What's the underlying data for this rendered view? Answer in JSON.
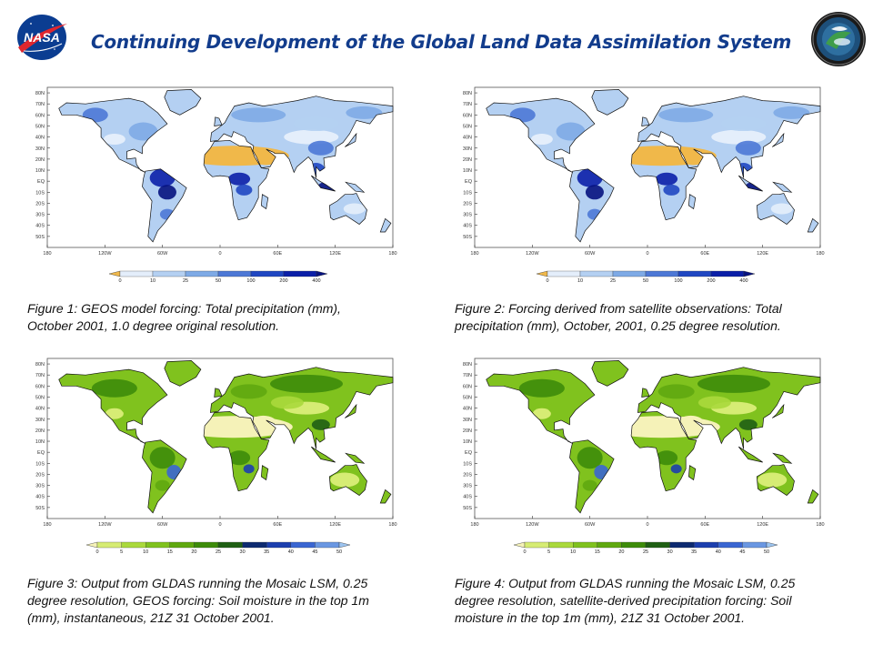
{
  "title": "Continuing Development of the Global Land Data Assimilation System",
  "logos": {
    "left": "NASA"
  },
  "map_axes": {
    "lat_labels": [
      "80N",
      "70N",
      "60N",
      "50N",
      "40N",
      "30N",
      "20N",
      "10N",
      "EQ",
      "10S",
      "20S",
      "30S",
      "40S",
      "50S"
    ],
    "lon_labels": [
      "180",
      "120W",
      "60W",
      "0",
      "60E",
      "120E",
      "180"
    ]
  },
  "colorbars": {
    "precipitation": {
      "ticks": [
        "0",
        "10",
        "25",
        "50",
        "100",
        "200",
        "400"
      ],
      "colors": [
        "#f0b84a",
        "#e4eefb",
        "#b4d0f2",
        "#7eaae6",
        "#4d78d6",
        "#2047c2",
        "#0b1fa8",
        "#061280",
        "#020a52"
      ]
    },
    "soil_moisture": {
      "ticks": [
        "0",
        "5",
        "10",
        "15",
        "20",
        "25",
        "30",
        "35",
        "40",
        "45",
        "50"
      ],
      "colors": [
        "#f5f2b8",
        "#d6ec74",
        "#aad93c",
        "#80c21e",
        "#5fa80f",
        "#3d8c0a",
        "#1f5f14",
        "#0d2a70",
        "#1c3fae",
        "#3a66d2",
        "#6a97e2",
        "#9cc4f0",
        "#c8e4fa"
      ]
    }
  },
  "figures": [
    {
      "variable": "precipitation",
      "caption": [
        "Figure 1:  GEOS model forcing: Total precipitation (mm),",
        "October 2001, 1.0 degree original resolution."
      ]
    },
    {
      "variable": "precipitation",
      "caption": [
        "Figure 2:  Forcing derived from satellite observations: Total",
        "precipitation (mm), October, 2001, 0.25 degree resolution."
      ]
    },
    {
      "variable": "soil_moisture",
      "caption": [
        "Figure 3:  Output from GLDAS running the Mosaic LSM, 0.25",
        "degree resolution, GEOS forcing: Soil moisture in the top 1m",
        "(mm), instantaneous, 21Z 31 October 2001."
      ]
    },
    {
      "variable": "soil_moisture",
      "caption": [
        "Figure 4:  Output from GLDAS running the Mosaic LSM, 0.25",
        "degree resolution, satellite-derived precipitation forcing: Soil",
        "moisture in the top 1m (mm), 21Z 31 October 2001."
      ]
    }
  ]
}
